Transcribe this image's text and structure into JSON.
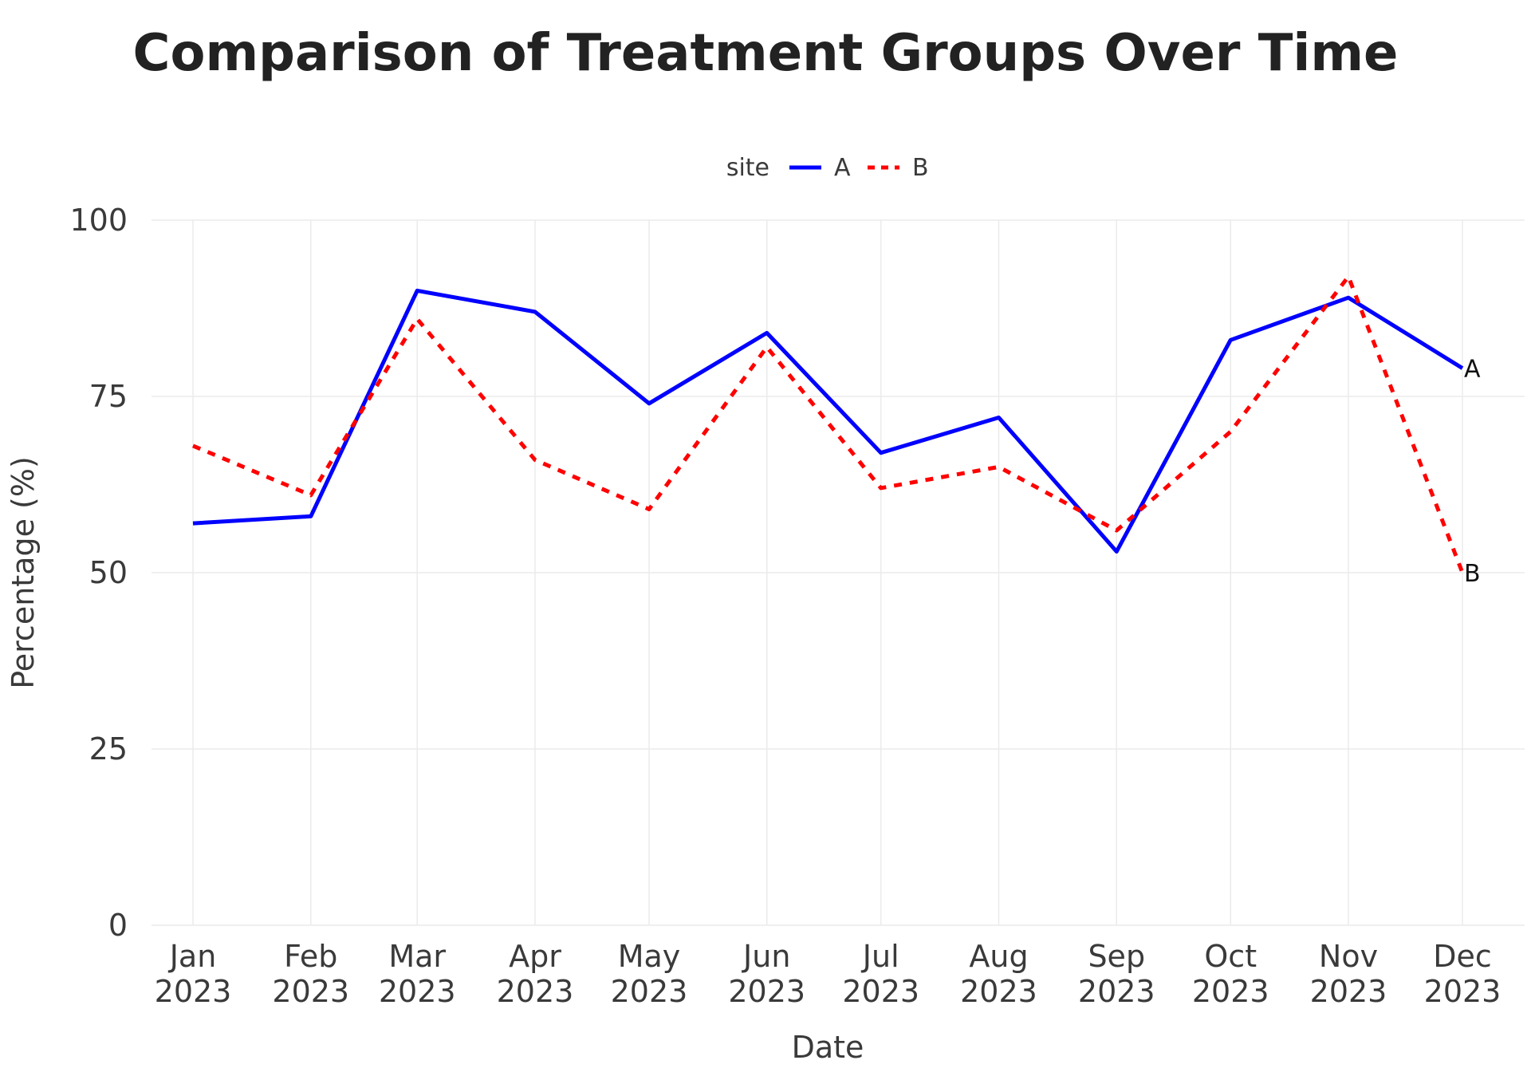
{
  "chart_data": {
    "type": "line",
    "title": "Comparison of Treatment Groups Over Time",
    "xlabel": "Date",
    "ylabel": "Percentage (%)",
    "ylim": [
      0,
      100
    ],
    "yticks": [
      "0",
      "25",
      "50",
      "75",
      "100"
    ],
    "categories": [
      {
        "month": "Jan",
        "year": "2023"
      },
      {
        "month": "Feb",
        "year": "2023"
      },
      {
        "month": "Mar",
        "year": "2023"
      },
      {
        "month": "Apr",
        "year": "2023"
      },
      {
        "month": "May",
        "year": "2023"
      },
      {
        "month": "Jun",
        "year": "2023"
      },
      {
        "month": "Jul",
        "year": "2023"
      },
      {
        "month": "Aug",
        "year": "2023"
      },
      {
        "month": "Sep",
        "year": "2023"
      },
      {
        "month": "Oct",
        "year": "2023"
      },
      {
        "month": "Nov",
        "year": "2023"
      },
      {
        "month": "Dec",
        "year": "2023"
      }
    ],
    "x_dates": [
      "2023-01-01",
      "2023-02-01",
      "2023-03-01",
      "2023-04-01",
      "2023-05-01",
      "2023-06-01",
      "2023-07-01",
      "2023-08-01",
      "2023-09-01",
      "2023-10-01",
      "2023-11-01",
      "2023-12-01"
    ],
    "legend": {
      "title": "site",
      "position": "top"
    },
    "grid": true,
    "series": [
      {
        "name": "A",
        "color": "#0000ff",
        "dash": "solid",
        "end_label": "A",
        "values": [
          57,
          58,
          90,
          87,
          74,
          84,
          67,
          72,
          53,
          83,
          89,
          79
        ]
      },
      {
        "name": "B",
        "color": "#ff0000",
        "dash": "dotted",
        "end_label": "B",
        "values": [
          68,
          61,
          86,
          66,
          59,
          82,
          62,
          65,
          56,
          70,
          92,
          50
        ]
      }
    ]
  }
}
